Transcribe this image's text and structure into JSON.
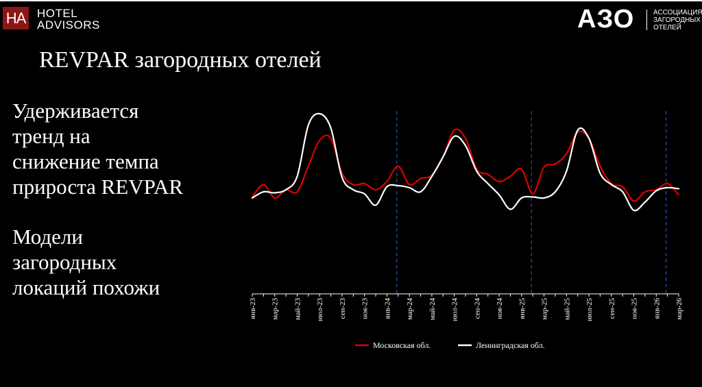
{
  "header": {
    "ha_logo_text": "HA",
    "ha_brand_line1": "HOTEL",
    "ha_brand_line2": "ADVISORS",
    "azo_logo_text": "АЗО",
    "azo_sub_line1": "АССОЦИАЦИЯ",
    "azo_sub_line2": "ЗАГОРОДНЫХ",
    "azo_sub_line3": "ОТЕЛЕЙ"
  },
  "title": "REVPAR загородных отелей",
  "bullets": [
    {
      "lines": [
        "Удерживается",
        "тренд на",
        "снижение темпа",
        "прироста REVPAR"
      ]
    },
    {
      "lines": [
        "Модели",
        "загородных",
        "локаций похожи"
      ]
    }
  ],
  "colors": {
    "moscow": "#e00000",
    "leningrad": "#ffffff",
    "divider": "#2f5fd0",
    "background": "#000000"
  },
  "chart_data": {
    "type": "line",
    "title": "",
    "xlabel": "",
    "ylabel": "",
    "x": [
      "янв-23",
      "фев-23",
      "мар-23",
      "апр-23",
      "май-23",
      "июн-23",
      "июл-23",
      "авг-23",
      "сен-23",
      "окт-23",
      "ноя-23",
      "дек-23",
      "янв-24",
      "фев-24",
      "мар-24",
      "апр-24",
      "май-24",
      "июн-24",
      "июл-24",
      "авг-24",
      "сен-24",
      "окт-24",
      "ноя-24",
      "дек-24",
      "янв-25",
      "фев-25",
      "мар-25",
      "апр-25",
      "май-25",
      "июн-25",
      "июл-25",
      "авг-25",
      "сен-25",
      "окт-25",
      "ноя-25",
      "дек-25",
      "янв-26",
      "фев-26",
      "мар-26"
    ],
    "tick_labels": [
      "янв-23",
      "мар-23",
      "май-23",
      "июл-23",
      "сен-23",
      "ноя-23",
      "янв-24",
      "мар-24",
      "май-24",
      "июл-24",
      "сен-24",
      "ноя-24",
      "янв-25",
      "мар-25",
      "май-25",
      "июл-25",
      "сен-25",
      "ноя-25",
      "янв-26",
      "мар-26"
    ],
    "ylim": [
      0,
      100
    ],
    "grid": false,
    "y_axis_visible": false,
    "legend_position": "bottom",
    "vertical_markers": [
      "фев-24",
      "фев-25",
      "фев-26"
    ],
    "series": [
      {
        "name": "Московская обл.",
        "color": "#e00000",
        "values": [
          15,
          27,
          14,
          22,
          20,
          45,
          70,
          72,
          38,
          27,
          28,
          22,
          30,
          45,
          27,
          33,
          36,
          54,
          80,
          72,
          42,
          37,
          30,
          35,
          42,
          18,
          44,
          47,
          57,
          78,
          72,
          45,
          28,
          25,
          11,
          20,
          22,
          28,
          17
        ]
      },
      {
        "name": "Ленинградская обл.",
        "color": "#ffffff",
        "values": [
          14,
          20,
          19,
          22,
          35,
          85,
          96,
          82,
          34,
          22,
          18,
          7,
          25,
          26,
          24,
          20,
          35,
          54,
          74,
          65,
          40,
          28,
          17,
          3,
          14,
          15,
          14,
          20,
          40,
          80,
          72,
          38,
          27,
          20,
          2,
          10,
          21,
          24,
          23
        ]
      }
    ]
  }
}
